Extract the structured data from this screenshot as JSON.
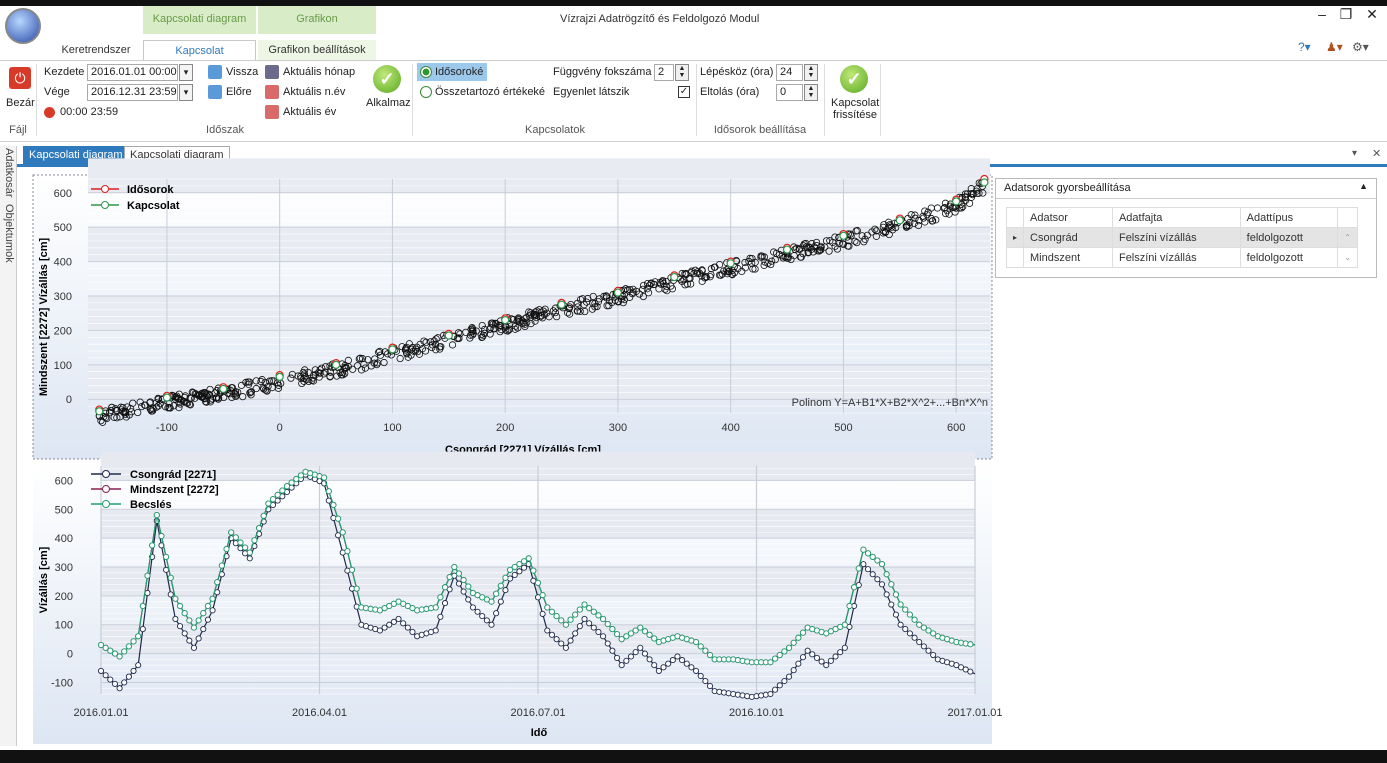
{
  "window": {
    "title": "Vízrajzi Adatrögzítő és Feldolgozó Modul"
  },
  "context_headers": [
    "Kapcsolati diagram",
    "Grafikon"
  ],
  "tabs": [
    "Keretrendszer",
    "Kapcsolat",
    "Grafikon beállítások"
  ],
  "ribbon": {
    "bezar": "Bezár",
    "fajl": "Fájl",
    "kezdete_label": "Kezdete",
    "kezdete": "2016.01.01 00:00",
    "vege_label": "Vége",
    "vege": "2016.12.31 23:59",
    "time_range": "00:00 23:59",
    "vissza": "Vissza",
    "elore": "Előre",
    "aktualis_honap": "Aktuális hónap",
    "aktualis_nev": "Aktuális n.év",
    "aktualis_ev": "Aktuális év",
    "alkalmaz": "Alkalmaz",
    "idoszak": "Időszak",
    "idosoroke": "Idősoroké",
    "osszetartozo": "Összetartozó értékeké",
    "fuggveny_label": "Függvény fokszáma",
    "fuggveny": "2",
    "egyenlet": "Egyenlet látszik",
    "kapcsolatok": "Kapcsolatok",
    "lepeskoz_label": "Lépésköz (óra)",
    "lepeskoz": "24",
    "eltolas_label": "Eltolás (óra)",
    "eltolas": "0",
    "idosorok_beallitasa": "Idősorok beállítása",
    "kapcsolat_frissitese_1": "Kapcsolat",
    "kapcsolat_frissitese_2": "frissítése"
  },
  "side_tabs": [
    "Adatkosár",
    "Objektumok"
  ],
  "doc_tabs": [
    "Kapcsolati diagram",
    "Kapcsolati diagram"
  ],
  "panel": {
    "title": "Adatsorok gyorsbeállítása",
    "columns": [
      "Adatsor",
      "Adatfajta",
      "Adattípus"
    ],
    "rows": [
      [
        "Csongrád",
        "Felszíni vízállás",
        "feldolgozott"
      ],
      [
        "Mindszent",
        "Felszíni vízállás",
        "feldolgozott"
      ]
    ]
  },
  "colors": {
    "accent": "#2f7abd",
    "red": "#e02020",
    "green": "#2a9a4a",
    "navy": "#1f2a4a",
    "maroon": "#8a2050",
    "teal": "#20a070"
  },
  "chart_data": [
    {
      "type": "scatter",
      "xlabel": "Csongrád [2271] Vízállás [cm]",
      "ylabel": "Mindszent [2272] Vízállás [cm]",
      "xlim": [
        -170,
        630
      ],
      "ylim": [
        -40,
        640
      ],
      "xticks": [
        -100,
        0,
        100,
        200,
        300,
        400,
        500,
        600
      ],
      "yticks": [
        0,
        100,
        200,
        300,
        400,
        500,
        600
      ],
      "annotation": "Polinom Y=A+B1*X+B2*X^2+...+Bn*X^n",
      "series": [
        {
          "name": "Idősorok",
          "points": [
            [
              -160,
              -30
            ],
            [
              -100,
              10
            ],
            [
              -50,
              35
            ],
            [
              0,
              70
            ],
            [
              50,
              105
            ],
            [
              100,
              150
            ],
            [
              150,
              190
            ],
            [
              200,
              235
            ],
            [
              250,
              280
            ],
            [
              300,
              315
            ],
            [
              350,
              360
            ],
            [
              400,
              400
            ],
            [
              450,
              440
            ],
            [
              500,
              480
            ],
            [
              550,
              525
            ],
            [
              600,
              580
            ],
            [
              625,
              640
            ]
          ]
        },
        {
          "name": "Kapcsolat",
          "points": [
            [
              -160,
              -35
            ],
            [
              -100,
              5
            ],
            [
              -50,
              30
            ],
            [
              0,
              65
            ],
            [
              50,
              100
            ],
            [
              100,
              145
            ],
            [
              150,
              185
            ],
            [
              200,
              230
            ],
            [
              250,
              275
            ],
            [
              300,
              310
            ],
            [
              350,
              355
            ],
            [
              400,
              395
            ],
            [
              450,
              435
            ],
            [
              500,
              475
            ],
            [
              550,
              520
            ],
            [
              600,
              575
            ],
            [
              625,
              630
            ]
          ]
        }
      ]
    },
    {
      "type": "line",
      "xlabel": "Idő",
      "ylabel": "Vízállás [cm]",
      "xticks": [
        "2016.01.01",
        "2016.04.01",
        "2016.07.01",
        "2016.10.01",
        "2017.01.01"
      ],
      "yticks": [
        -100,
        0,
        100,
        200,
        300,
        400,
        500,
        600
      ],
      "ylim": [
        -140,
        650
      ],
      "series": [
        {
          "name": "Csongrád [2271]",
          "values": [
            -60,
            -120,
            -40,
            460,
            120,
            20,
            150,
            400,
            330,
            500,
            560,
            620,
            590,
            350,
            100,
            80,
            120,
            60,
            80,
            270,
            160,
            100,
            260,
            310,
            80,
            20,
            120,
            60,
            -40,
            20,
            -60,
            -10,
            -60,
            -130,
            -140,
            -150,
            -140,
            -80,
            10,
            -40,
            20,
            310,
            240,
            100,
            40,
            -20,
            -40,
            -70
          ]
        },
        {
          "name": "Mindszent [2272]",
          "values": [
            30,
            -10,
            60,
            480,
            190,
            90,
            190,
            420,
            350,
            520,
            580,
            630,
            610,
            420,
            160,
            150,
            180,
            150,
            160,
            300,
            210,
            180,
            290,
            330,
            160,
            100,
            170,
            120,
            50,
            90,
            40,
            60,
            40,
            -20,
            -20,
            -30,
            -30,
            20,
            90,
            70,
            100,
            360,
            310,
            170,
            100,
            60,
            40,
            30
          ]
        },
        {
          "name": "Becslés",
          "values": [
            30,
            -10,
            60,
            480,
            190,
            90,
            190,
            420,
            350,
            520,
            580,
            630,
            610,
            420,
            160,
            150,
            180,
            150,
            160,
            300,
            210,
            180,
            290,
            330,
            160,
            100,
            170,
            120,
            50,
            90,
            40,
            60,
            40,
            -20,
            -20,
            -30,
            -30,
            20,
            90,
            70,
            100,
            360,
            310,
            170,
            100,
            60,
            40,
            30
          ]
        }
      ]
    }
  ]
}
